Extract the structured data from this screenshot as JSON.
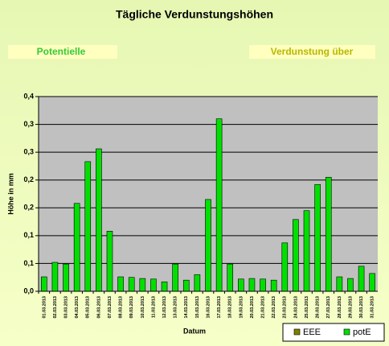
{
  "chart_data": {
    "type": "bar",
    "title": "Tägliche Verdunstungshöhen",
    "annotations": [
      "Potentielle",
      "Verdunstung über"
    ],
    "xlabel": "Datum",
    "ylabel": "Höhe in mm",
    "categories": [
      "01.03.2013",
      "02.03.2013",
      "03.03.2013",
      "04.03.2013",
      "05.03.2013",
      "06.03.2013",
      "07.03.2013",
      "08.03.2013",
      "09.03.2013",
      "10.03.2013",
      "11.03.2013",
      "12.03.2013",
      "13.03.2013",
      "14.03.2013",
      "15.03.2013",
      "16.03.2013",
      "17.03.2013",
      "18.03.2013",
      "19.03.2013",
      "20.03.2013",
      "21.03.2013",
      "22.03.2013",
      "23.03.2013",
      "24.03.2013",
      "25.03.2013",
      "26.03.2013",
      "27.03.2013",
      "28.03.2013",
      "29.03.2013",
      "30.03.2013",
      "31.03.2013"
    ],
    "series": [
      {
        "name": "EEE",
        "color": "#808000",
        "values": [
          null,
          null,
          null,
          null,
          null,
          null,
          null,
          null,
          null,
          null,
          null,
          null,
          null,
          null,
          null,
          null,
          null,
          null,
          null,
          null,
          null,
          null,
          null,
          null,
          null,
          null,
          null,
          null,
          null,
          null,
          null
        ]
      },
      {
        "name": "potE",
        "color": "#00e000",
        "values": [
          0.026,
          0.052,
          0.049,
          0.158,
          0.233,
          0.256,
          0.108,
          0.026,
          0.025,
          0.023,
          0.022,
          0.017,
          0.049,
          0.02,
          0.03,
          0.165,
          0.31,
          0.049,
          0.022,
          0.023,
          0.022,
          0.02,
          0.087,
          0.129,
          0.145,
          0.192,
          0.205,
          0.026,
          0.023,
          0.045,
          0.032
        ]
      }
    ],
    "ylim": [
      0,
      0.35
    ],
    "yticks": [
      {
        "value": 0,
        "label": "0,0"
      },
      {
        "value": 0.05,
        "label": "0,1"
      },
      {
        "value": 0.1,
        "label": "0,1"
      },
      {
        "value": 0.15,
        "label": "0,2"
      },
      {
        "value": 0.2,
        "label": "0,2"
      },
      {
        "value": 0.25,
        "label": "0,3"
      },
      {
        "value": 0.3,
        "label": "0,3"
      },
      {
        "value": 0.35,
        "label": "0,4"
      }
    ],
    "grid": true,
    "legend": "bottom-right"
  }
}
